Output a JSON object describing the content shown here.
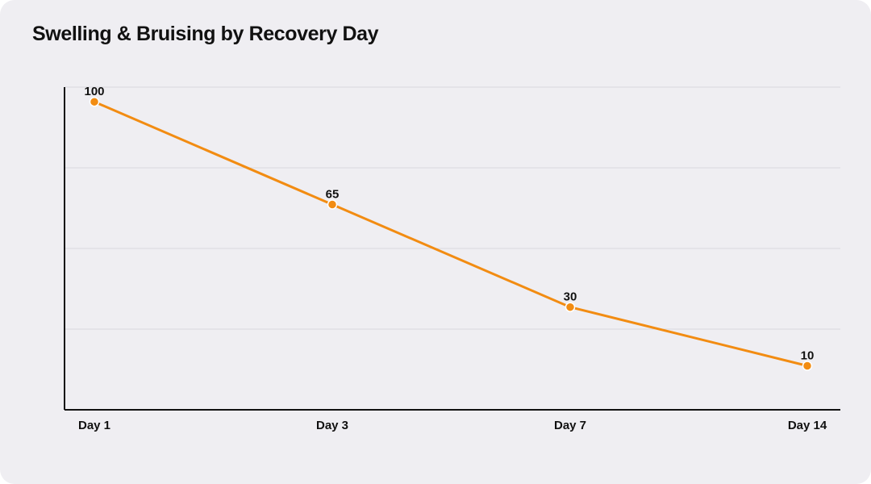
{
  "chart_data": {
    "type": "line",
    "title": "Swelling & Bruising by Recovery Day",
    "categories": [
      "Day 1",
      "Day 3",
      "Day 7",
      "Day 14"
    ],
    "series": [
      {
        "values": [
          100,
          65,
          30,
          10
        ],
        "color": "#f28c12"
      }
    ],
    "data_labels": [
      "100",
      "65",
      "30",
      "10"
    ],
    "ylim": [
      -5,
      105
    ],
    "grid": true,
    "legend": "none",
    "colors": {
      "background": "#efeef2",
      "line": "#f28c12",
      "grid": "#d9d8de",
      "axis": "#111111"
    }
  }
}
